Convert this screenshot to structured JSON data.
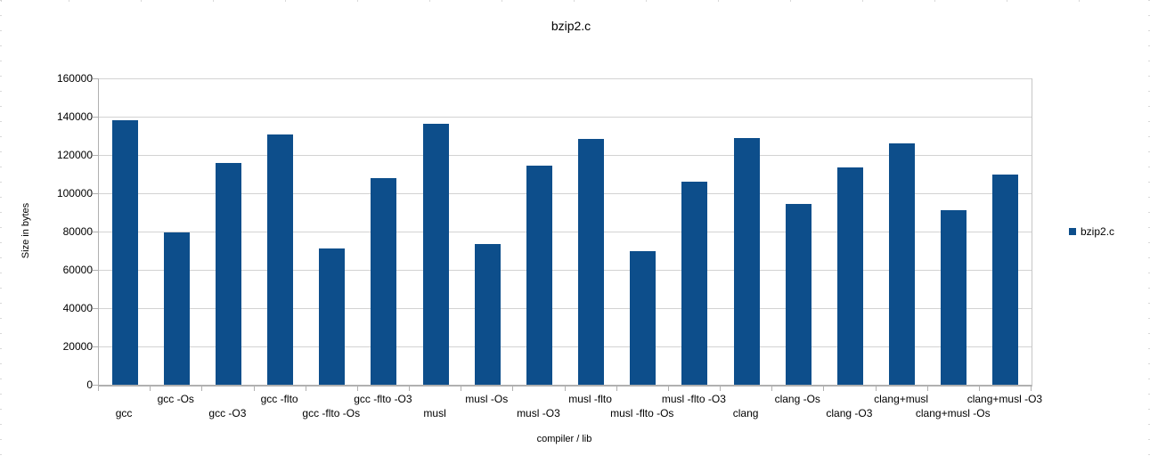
{
  "chart_data": {
    "type": "bar",
    "title": "bzip2.c",
    "xlabel": "compiler / lib",
    "ylabel": "Size in bytes",
    "legend": {
      "position": "right",
      "label": "bzip2.c"
    },
    "categories": [
      "gcc",
      "gcc -Os",
      "gcc -O3",
      "gcc -flto",
      "gcc -flto -Os",
      "gcc -flto -O3",
      "musl",
      "musl -Os",
      "musl -O3",
      "musl -flto",
      "musl -flto -Os",
      "musl -flto -O3",
      "clang",
      "clang -Os",
      "clang -O3",
      "clang+musl",
      "clang+musl -Os",
      "clang+musl -O3"
    ],
    "series": [
      {
        "name": "bzip2.c",
        "color": "#0d4e8b",
        "values": [
          138000,
          79500,
          116000,
          130500,
          71200,
          107800,
          136500,
          73400,
          114400,
          128400,
          69700,
          106000,
          129000,
          94500,
          113600,
          126000,
          91000,
          109800
        ]
      }
    ],
    "ylim": [
      0,
      160000
    ],
    "ytick_interval": 20000,
    "grid": "horizontal",
    "colors": {
      "bar": "#0d4e8b",
      "gridline": "#d3d3d3",
      "axis": "#b0b0b0",
      "background": "#ffffff"
    }
  }
}
